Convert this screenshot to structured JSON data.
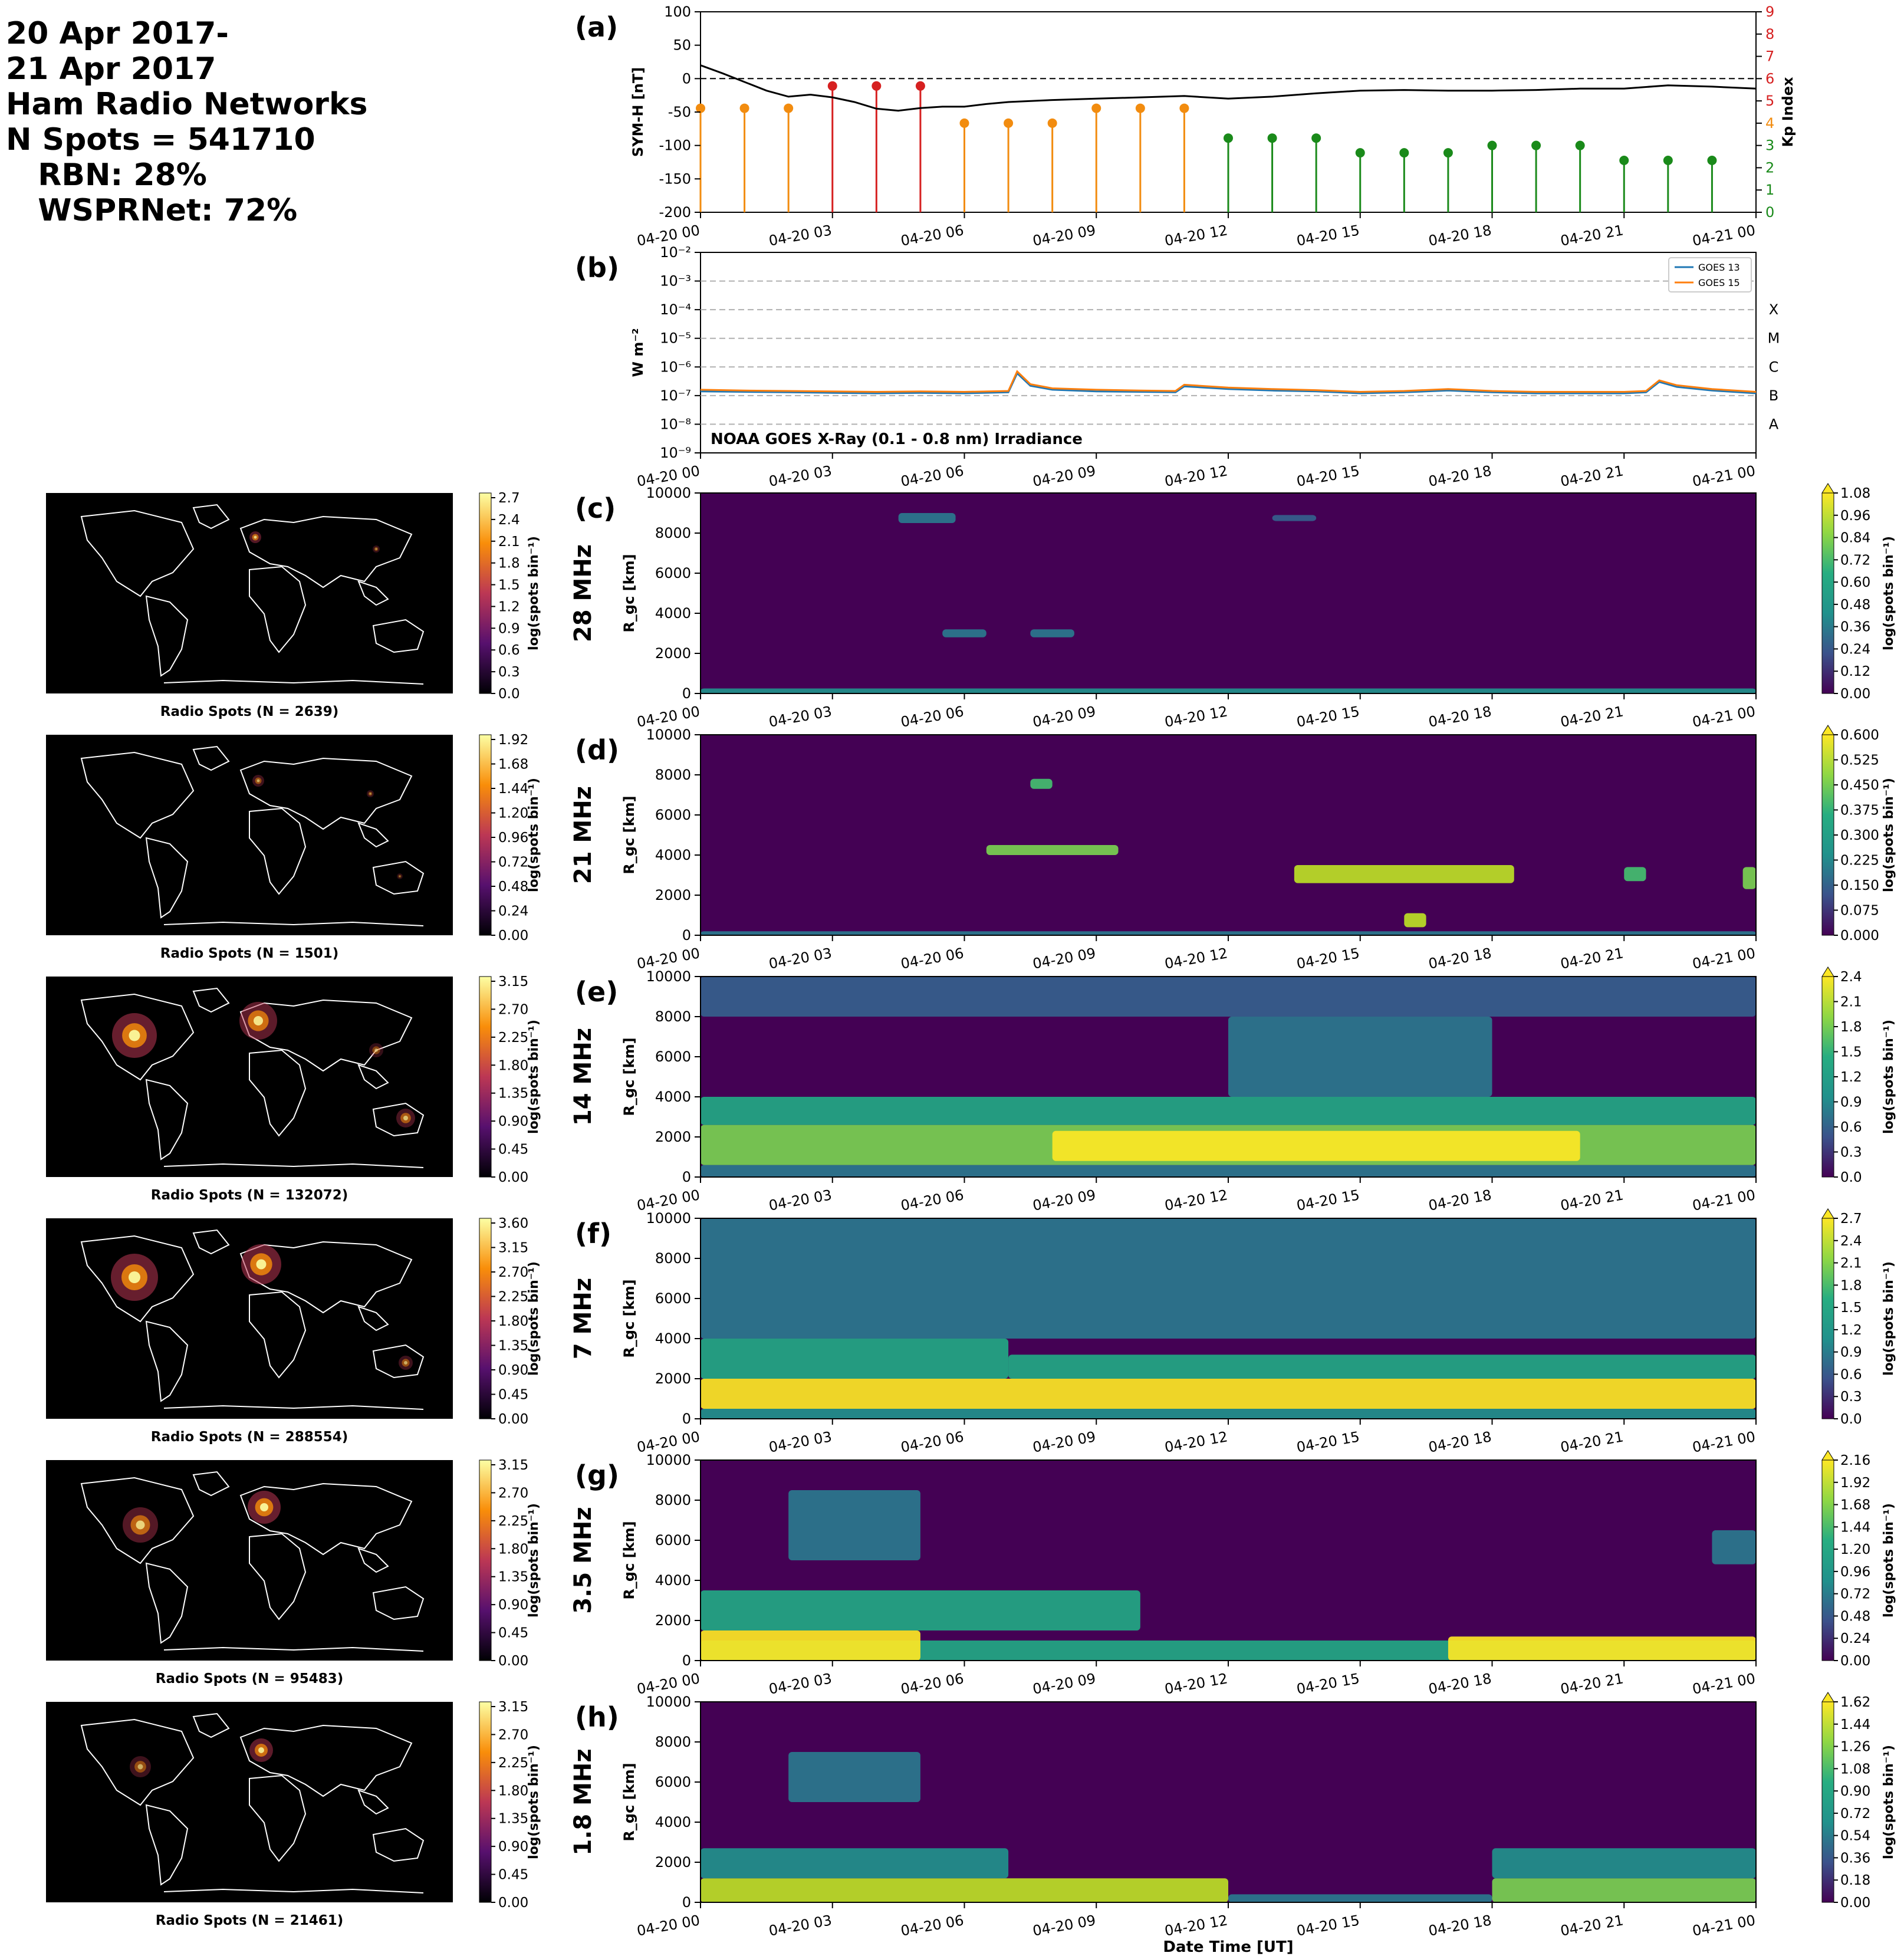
{
  "header": {
    "lines": [
      "20 Apr 2017-",
      "21 Apr 2017",
      "Ham Radio Networks",
      "N Spots = 541710",
      "   RBN: 28%",
      "   WSPRNet: 72%"
    ]
  },
  "time_ticks": [
    "04-20 00",
    "04-20 03",
    "04-20 06",
    "04-20 09",
    "04-20 12",
    "04-20 15",
    "04-20 18",
    "04-20 21",
    "04-21 00"
  ],
  "xlabel_bottom": "Date Time [UT]",
  "colors": {
    "symh": "#000000",
    "goes13": "#1f77b4",
    "goes15": "#ff7f0e",
    "kp_low": "#1a8a1a",
    "kp_mid": "#f28c0f",
    "kp_high": "#d62020"
  },
  "chart_data": [
    {
      "panel": "(a)",
      "type": "line",
      "ylabel": "SYM-H [nT]",
      "ylim": [
        -200,
        100
      ],
      "yticks": [
        "100",
        "50",
        "0",
        "-50",
        "-100",
        "-150",
        "-200"
      ],
      "symh_hours": [
        0,
        0.5,
        1,
        1.5,
        2,
        2.5,
        3,
        3.5,
        4,
        4.5,
        5,
        5.5,
        6,
        6.5,
        7,
        8,
        9,
        10,
        11,
        12,
        13,
        14,
        15,
        16,
        17,
        18,
        19,
        20,
        21,
        22,
        23,
        24
      ],
      "symh_values": [
        20,
        8,
        -5,
        -18,
        -27,
        -24,
        -28,
        -35,
        -45,
        -48,
        -44,
        -42,
        -42,
        -38,
        -35,
        -32,
        -30,
        -28,
        -26,
        -30,
        -27,
        -22,
        -18,
        -17,
        -18,
        -18,
        -17,
        -15,
        -15,
        -10,
        -12,
        -15
      ],
      "y2label": "Kp Index",
      "y2lim": [
        0,
        9
      ],
      "y2ticks": [
        "0",
        "1",
        "2",
        "3",
        "4",
        "5",
        "6",
        "7",
        "8",
        "9"
      ],
      "kp_hours": [
        0,
        1.5,
        4.5,
        7.5,
        10.5,
        13.5,
        16.5,
        19.5,
        22.5
      ],
      "kp_hours_note": "",
      "kp_points": [
        {
          "t": 0,
          "kp": 4.67
        },
        {
          "t": 1,
          "kp": 4.67
        },
        {
          "t": 2,
          "kp": 4.67
        },
        {
          "t": 3,
          "kp": 5.67
        },
        {
          "t": 4,
          "kp": 5.67
        },
        {
          "t": 5,
          "kp": 5.67
        },
        {
          "t": 6,
          "kp": 4.0
        },
        {
          "t": 7,
          "kp": 4.0
        },
        {
          "t": 8,
          "kp": 4.0
        },
        {
          "t": 9,
          "kp": 4.67
        },
        {
          "t": 10,
          "kp": 4.67
        },
        {
          "t": 11,
          "kp": 4.67
        },
        {
          "t": 12,
          "kp": 3.33
        },
        {
          "t": 13,
          "kp": 3.33
        },
        {
          "t": 14,
          "kp": 3.33
        },
        {
          "t": 15,
          "kp": 2.67
        },
        {
          "t": 16,
          "kp": 2.67
        },
        {
          "t": 17,
          "kp": 2.67
        },
        {
          "t": 18,
          "kp": 3.0
        },
        {
          "t": 19,
          "kp": 3.0
        },
        {
          "t": 20,
          "kp": 3.0
        },
        {
          "t": 21,
          "kp": 2.33
        },
        {
          "t": 22,
          "kp": 2.33
        },
        {
          "t": 23,
          "kp": 2.33
        }
      ]
    },
    {
      "panel": "(b)",
      "type": "line",
      "ylabel": "W m⁻²",
      "yscale": "log",
      "ylim": [
        1e-09,
        0.01
      ],
      "yticks": [
        "10⁻²",
        "10⁻³",
        "10⁻⁴",
        "10⁻⁵",
        "10⁻⁶",
        "10⁻⁷",
        "10⁻⁸",
        "10⁻⁹"
      ],
      "flare_classes": [
        "X",
        "M",
        "C",
        "B",
        "A"
      ],
      "annotation": "NOAA GOES X-Ray (0.1 - 0.8 nm) Irradiance",
      "series": [
        {
          "name": "GOES 13",
          "hours": [
            0,
            1,
            2,
            3,
            4,
            5,
            6,
            7.0,
            7.2,
            7.5,
            8,
            9,
            10,
            10.8,
            11,
            12,
            13,
            14,
            15,
            16,
            17,
            18,
            19,
            20,
            21,
            21.5,
            21.8,
            22.2,
            23,
            24
          ],
          "values": [
            1.4e-07,
            1.35e-07,
            1.3e-07,
            1.25e-07,
            1.2e-07,
            1.25e-07,
            1.2e-07,
            1.3e-07,
            6e-07,
            2.2e-07,
            1.6e-07,
            1.4e-07,
            1.35e-07,
            1.3e-07,
            2.1e-07,
            1.7e-07,
            1.5e-07,
            1.4e-07,
            1.2e-07,
            1.3e-07,
            1.5e-07,
            1.3e-07,
            1.2e-07,
            1.2e-07,
            1.2e-07,
            1.3e-07,
            3e-07,
            2e-07,
            1.5e-07,
            1.2e-07
          ]
        },
        {
          "name": "GOES 15",
          "hours": [
            0,
            1,
            2,
            3,
            4,
            5,
            6,
            7.0,
            7.2,
            7.5,
            8,
            9,
            10,
            10.8,
            11,
            12,
            13,
            14,
            15,
            16,
            17,
            18,
            19,
            20,
            21,
            21.5,
            21.8,
            22.2,
            23,
            24
          ],
          "values": [
            1.6e-07,
            1.5e-07,
            1.45e-07,
            1.4e-07,
            1.35e-07,
            1.4e-07,
            1.35e-07,
            1.45e-07,
            7e-07,
            2.5e-07,
            1.8e-07,
            1.6e-07,
            1.5e-07,
            1.45e-07,
            2.4e-07,
            1.9e-07,
            1.7e-07,
            1.55e-07,
            1.35e-07,
            1.45e-07,
            1.7e-07,
            1.45e-07,
            1.35e-07,
            1.35e-07,
            1.35e-07,
            1.45e-07,
            3.4e-07,
            2.3e-07,
            1.7e-07,
            1.35e-07
          ]
        }
      ]
    },
    {
      "panel": "(c)",
      "type": "heatmap",
      "band": "28 MHz",
      "ylabel": "R_gc [km]",
      "ylim": [
        0,
        10000
      ],
      "yticks": [
        "10000",
        "8000",
        "6000",
        "4000",
        "2000",
        "0"
      ],
      "cbar_label": "log(spots bin⁻¹)",
      "cbar_ticks": [
        "1.08",
        "0.96",
        "0.84",
        "0.72",
        "0.60",
        "0.48",
        "0.36",
        "0.24",
        "0.12",
        "0.00"
      ],
      "cbar_max": 1.08,
      "map_caption": "Radio Spots (N = 2639)",
      "map_cbar_ticks": [
        "2.7",
        "2.4",
        "2.1",
        "1.8",
        "1.5",
        "1.2",
        "0.9",
        "0.6",
        "0.3",
        "0.0"
      ]
    },
    {
      "panel": "(d)",
      "type": "heatmap",
      "band": "21 MHz",
      "ylabel": "R_gc [km]",
      "ylim": [
        0,
        10000
      ],
      "yticks": [
        "10000",
        "8000",
        "6000",
        "4000",
        "2000",
        "0"
      ],
      "cbar_label": "log(spots bin⁻¹)",
      "cbar_ticks": [
        "0.600",
        "0.525",
        "0.450",
        "0.375",
        "0.300",
        "0.225",
        "0.150",
        "0.075",
        "0.000"
      ],
      "cbar_max": 0.6,
      "map_caption": "Radio Spots (N = 1501)",
      "map_cbar_ticks": [
        "1.92",
        "1.68",
        "1.44",
        "1.20",
        "0.96",
        "0.72",
        "0.48",
        "0.24",
        "0.00"
      ]
    },
    {
      "panel": "(e)",
      "type": "heatmap",
      "band": "14 MHz",
      "ylabel": "R_gc [km]",
      "ylim": [
        0,
        10000
      ],
      "yticks": [
        "10000",
        "8000",
        "6000",
        "4000",
        "2000",
        "0"
      ],
      "cbar_label": "log(spots bin⁻¹)",
      "cbar_ticks": [
        "2.4",
        "2.1",
        "1.8",
        "1.5",
        "1.2",
        "0.9",
        "0.6",
        "0.3",
        "0.0"
      ],
      "cbar_max": 2.4,
      "map_caption": "Radio Spots (N = 132072)",
      "map_cbar_ticks": [
        "3.15",
        "2.70",
        "2.25",
        "1.80",
        "1.35",
        "0.90",
        "0.45",
        "0.00"
      ]
    },
    {
      "panel": "(f)",
      "type": "heatmap",
      "band": "7 MHz",
      "ylabel": "R_gc [km]",
      "ylim": [
        0,
        10000
      ],
      "yticks": [
        "10000",
        "8000",
        "6000",
        "4000",
        "2000",
        "0"
      ],
      "cbar_label": "log(spots bin⁻¹)",
      "cbar_ticks": [
        "2.7",
        "2.4",
        "2.1",
        "1.8",
        "1.5",
        "1.2",
        "0.9",
        "0.6",
        "0.3",
        "0.0"
      ],
      "cbar_max": 2.7,
      "map_caption": "Radio Spots (N = 288554)",
      "map_cbar_ticks": [
        "3.60",
        "3.15",
        "2.70",
        "2.25",
        "1.80",
        "1.35",
        "0.90",
        "0.45",
        "0.00"
      ]
    },
    {
      "panel": "(g)",
      "type": "heatmap",
      "band": "3.5 MHz",
      "ylabel": "R_gc [km]",
      "ylim": [
        0,
        10000
      ],
      "yticks": [
        "10000",
        "8000",
        "6000",
        "4000",
        "2000",
        "0"
      ],
      "cbar_label": "log(spots bin⁻¹)",
      "cbar_ticks": [
        "2.16",
        "1.92",
        "1.68",
        "1.44",
        "1.20",
        "0.96",
        "0.72",
        "0.48",
        "0.24",
        "0.00"
      ],
      "cbar_max": 2.16,
      "map_caption": "Radio Spots (N = 95483)",
      "map_cbar_ticks": [
        "3.15",
        "2.70",
        "2.25",
        "1.80",
        "1.35",
        "0.90",
        "0.45",
        "0.00"
      ]
    },
    {
      "panel": "(h)",
      "type": "heatmap",
      "band": "1.8 MHz",
      "ylabel": "R_gc [km]",
      "ylim": [
        0,
        10000
      ],
      "yticks": [
        "10000",
        "8000",
        "6000",
        "4000",
        "2000",
        "0"
      ],
      "cbar_label": "log(spots bin⁻¹)",
      "cbar_ticks": [
        "1.62",
        "1.44",
        "1.26",
        "1.08",
        "0.90",
        "0.72",
        "0.54",
        "0.36",
        "0.18",
        "0.00"
      ],
      "cbar_max": 1.62,
      "map_caption": "Radio Spots (N = 21461)",
      "map_cbar_ticks": [
        "3.15",
        "2.70",
        "2.25",
        "1.80",
        "1.35",
        "0.90",
        "0.45",
        "0.00"
      ]
    }
  ]
}
